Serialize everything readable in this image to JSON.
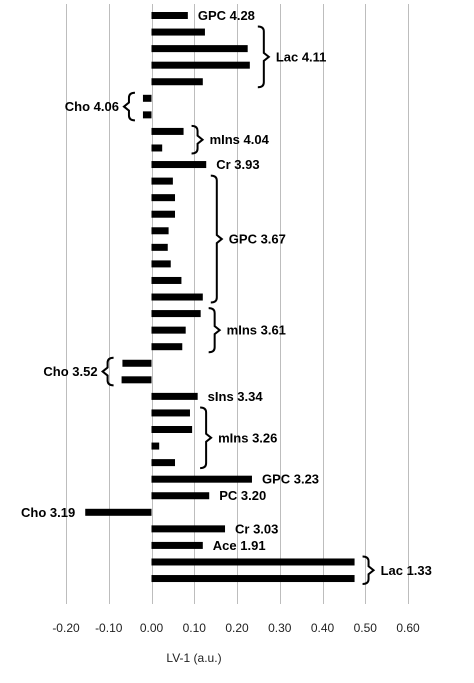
{
  "chart_data": {
    "type": "bar",
    "orientation": "horizontal",
    "xlabel": "LV-1 (a.u.)",
    "xlim": [
      -0.2,
      0.6
    ],
    "xticks": [
      "-0.20",
      "-0.10",
      "0.00",
      "0.10",
      "0.20",
      "0.30",
      "0.40",
      "0.50",
      "0.60"
    ],
    "grid": true,
    "values": [
      0.085,
      0.125,
      0.225,
      0.23,
      0.12,
      -0.02,
      -0.02,
      0.075,
      0.025,
      0.128,
      0.05,
      0.055,
      0.055,
      0.04,
      0.038,
      0.045,
      0.07,
      0.12,
      0.115,
      0.08,
      0.072,
      -0.068,
      -0.07,
      0.108,
      0.09,
      0.095,
      0.018,
      0.055,
      0.235,
      0.135,
      -0.155,
      0.172,
      0.12,
      0.475,
      0.475
    ],
    "annotations": [
      {
        "label": "GPC 4.28",
        "bars": [
          0,
          0
        ],
        "side": "right",
        "bracket": false
      },
      {
        "label": "Lac 4.11",
        "bars": [
          1,
          4
        ],
        "side": "right",
        "bracket": true
      },
      {
        "label": "Cho 4.06",
        "bars": [
          5,
          6
        ],
        "side": "left",
        "bracket": true
      },
      {
        "label": "mIns 4.04",
        "bars": [
          7,
          8
        ],
        "side": "right",
        "bracket": true
      },
      {
        "label": "Cr 3.93",
        "bars": [
          9,
          9
        ],
        "side": "right",
        "bracket": false
      },
      {
        "label": "GPC 3.67",
        "bars": [
          10,
          17
        ],
        "side": "right",
        "bracket": true
      },
      {
        "label": "mIns 3.61",
        "bars": [
          18,
          20
        ],
        "side": "right",
        "bracket": true
      },
      {
        "label": "Cho 3.52",
        "bars": [
          21,
          22
        ],
        "side": "left",
        "bracket": true
      },
      {
        "label": "sIns 3.34",
        "bars": [
          23,
          23
        ],
        "side": "right",
        "bracket": false
      },
      {
        "label": "mIns 3.26",
        "bars": [
          24,
          27
        ],
        "side": "right",
        "bracket": true
      },
      {
        "label": "GPC 3.23",
        "bars": [
          28,
          28
        ],
        "side": "right",
        "bracket": false
      },
      {
        "label": "PC 3.20",
        "bars": [
          29,
          29
        ],
        "side": "right",
        "bracket": false
      },
      {
        "label": "Cho 3.19",
        "bars": [
          30,
          30
        ],
        "side": "left",
        "bracket": false
      },
      {
        "label": "Cr 3.03",
        "bars": [
          31,
          31
        ],
        "side": "right",
        "bracket": false
      },
      {
        "label": "Ace 1.91",
        "bars": [
          32,
          32
        ],
        "side": "right",
        "bracket": false
      },
      {
        "label": "Lac 1.33",
        "bars": [
          33,
          34
        ],
        "side": "right",
        "bracket": true
      }
    ]
  }
}
